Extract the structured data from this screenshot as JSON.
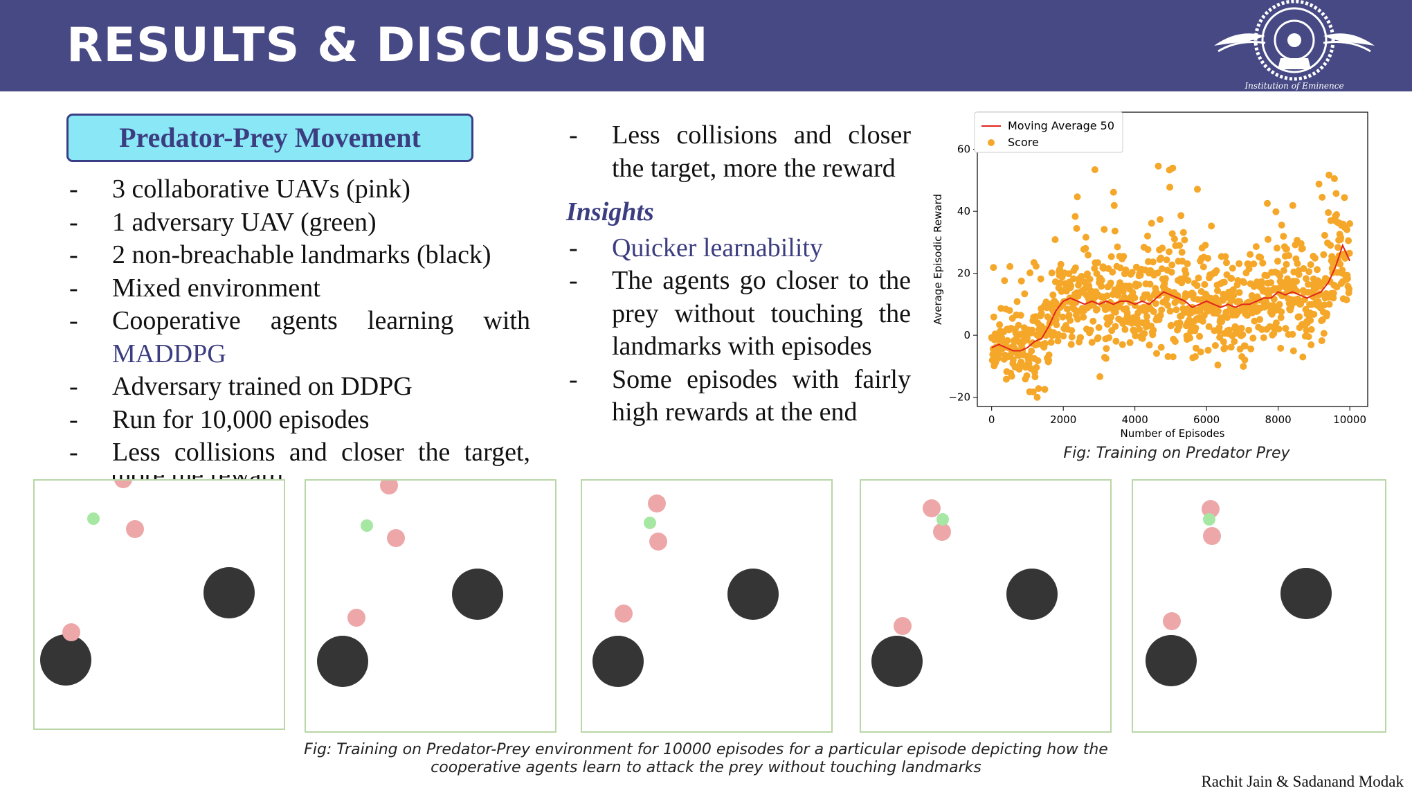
{
  "header": {
    "title": "RESULTS & DISCUSSION"
  },
  "section": {
    "title": "Predator-Prey Movement"
  },
  "left_bullets": [
    "3 collaborative UAVs (pink)",
    "1 adversary UAV (green)",
    "2 non-breachable landmarks (black)",
    "Mixed environment",
    "Cooperative agents learning with",
    "MADDPG",
    "Adversary trained on DDPG",
    "Run for 10,000 episodes",
    "Less collisions and closer the target,"
  ],
  "left_overflow": "more the reward",
  "right_col": {
    "first_bullet": "Less collisions and closer the target, more the reward",
    "insights_heading": "Insights",
    "insights": [
      "Quicker learnability",
      "The agents go closer to the prey without touching the landmarks with episodes",
      "Some episodes with fairly high rewards at the end"
    ]
  },
  "chart_data": {
    "type": "scatter",
    "title": "",
    "xlabel": "Number of Episodes",
    "ylabel": "Average Episodic Reward",
    "xlim": [
      -400,
      10500
    ],
    "ylim": [
      -23,
      72
    ],
    "xticks": [
      "0",
      "2000",
      "4000",
      "6000",
      "8000",
      "10000"
    ],
    "yticks": [
      "−20",
      "0",
      "20",
      "40",
      "60"
    ],
    "legend": {
      "placement": "top-left",
      "entries": [
        "Moving Average 50",
        "Score"
      ]
    },
    "series": [
      {
        "name": "Moving Average 50",
        "kind": "line",
        "color": "#e0241b",
        "x": [
          0,
          200,
          400,
          600,
          800,
          1000,
          1200,
          1400,
          1600,
          1800,
          2000,
          2200,
          2400,
          2600,
          2800,
          3000,
          3200,
          3400,
          3600,
          3800,
          4000,
          4200,
          4400,
          4600,
          4800,
          5000,
          5200,
          5400,
          5600,
          5800,
          6000,
          6200,
          6400,
          6600,
          6800,
          7000,
          7200,
          7400,
          7600,
          7800,
          8000,
          8200,
          8400,
          8600,
          8800,
          9000,
          9200,
          9400,
          9600,
          9800,
          10000
        ],
        "y": [
          -4,
          -3,
          -4,
          -5,
          -5,
          -4,
          -2,
          -1,
          3,
          8,
          11,
          12,
          11,
          10,
          11,
          10,
          11,
          10,
          11,
          11,
          10,
          11,
          10,
          12,
          14,
          13,
          12,
          11,
          9,
          10,
          11,
          10,
          9,
          10,
          9,
          10,
          10,
          11,
          12,
          12,
          14,
          13,
          14,
          13,
          12,
          13,
          14,
          17,
          22,
          29,
          24
        ]
      },
      {
        "name": "Score",
        "kind": "scatter",
        "color": "#f5a729",
        "seed": 7,
        "count": 1000
      }
    ]
  },
  "chart_caption": "Fig: Training on Predator Prey",
  "panels": [
    {
      "pink": [
        [
          128,
          -2
        ],
        [
          145,
          70
        ],
        [
          53,
          219
        ]
      ],
      "green": [
        [
          85,
          55
        ]
      ],
      "black": [
        [
          281,
          162
        ],
        [
          45,
          259
        ]
      ]
    },
    {
      "pink": [
        [
          120,
          7
        ],
        [
          130,
          83
        ],
        [
          73,
          198
        ]
      ],
      "green": [
        [
          88,
          65
        ]
      ],
      "black": [
        [
          248,
          164
        ],
        [
          53,
          261
        ]
      ]
    },
    {
      "pink": [
        [
          108,
          33
        ],
        [
          110,
          88
        ],
        [
          60,
          192
        ]
      ],
      "green": [
        [
          98,
          61
        ]
      ],
      "black": [
        [
          247,
          164
        ],
        [
          52,
          261
        ]
      ]
    },
    {
      "pink": [
        [
          102,
          40
        ],
        [
          117,
          74
        ],
        [
          60,
          210
        ]
      ],
      "green": [
        [
          118,
          56
        ]
      ],
      "black": [
        [
          247,
          164
        ],
        [
          52,
          261
        ]
      ]
    },
    {
      "pink": [
        [
          112,
          41
        ],
        [
          114,
          80
        ],
        [
          56,
          203
        ]
      ],
      "green": [
        [
          110,
          56
        ]
      ],
      "black": [
        [
          250,
          163
        ],
        [
          55,
          260
        ]
      ]
    }
  ],
  "colors": {
    "pink": "#eda7a8",
    "green": "#a6e7a3",
    "black": "#353535",
    "header": "#474984",
    "accent": "#3b3d80"
  },
  "bottom_caption_line1": "Fig: Training on Predator-Prey environment for 10000 episodes for a particular episode depicting how the",
  "bottom_caption_line2": "cooperative agents learn to attack the prey without touching landmarks",
  "authors": "Rachit Jain & Sadanand Modak"
}
